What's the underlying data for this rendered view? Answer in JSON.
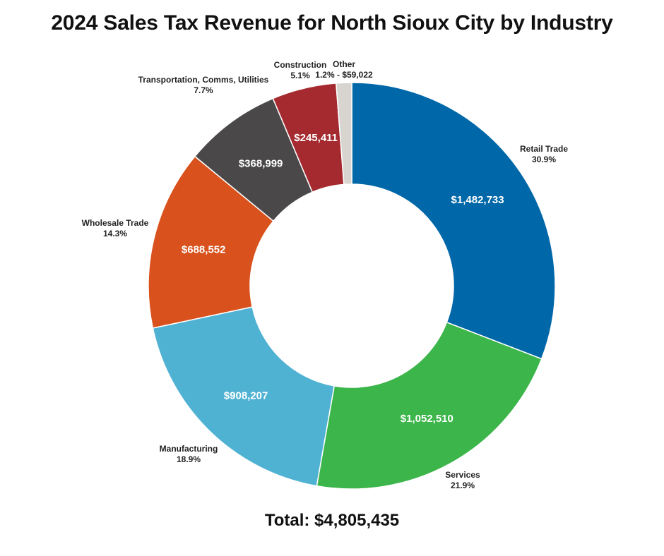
{
  "chart_data": {
    "type": "pie",
    "variant": "donut",
    "title": "2024 Sales Tax Revenue for North Sioux City by Industry",
    "total_label": "Total: $4,805,435",
    "slices": [
      {
        "label": "Retail Trade",
        "percent_label": "30.9%",
        "value": 1482733,
        "value_label": "$1,482,733",
        "color": "#0067a8"
      },
      {
        "label": "Services",
        "percent_label": "21.9%",
        "value": 1052510,
        "value_label": "$1,052,510",
        "color": "#3cb54a"
      },
      {
        "label": "Manufacturing",
        "percent_label": "18.9%",
        "value": 908207,
        "value_label": "$908,207",
        "color": "#50b2d3"
      },
      {
        "label": "Wholesale Trade",
        "percent_label": "14.3%",
        "value": 688552,
        "value_label": "$688,552",
        "color": "#d9521d"
      },
      {
        "label": "Transportation, Comms, Utilities",
        "percent_label": "7.7%",
        "value": 368999,
        "value_label": "$368,999",
        "color": "#4a4849"
      },
      {
        "label": "Construction",
        "percent_label": "5.1%",
        "value": 245411,
        "value_label": "$245,411",
        "color": "#a52a30"
      },
      {
        "label": "Other",
        "percent_label": "1.2% - $59,022",
        "value": 59022,
        "value_label": "",
        "color": "#d8d5d0"
      }
    ]
  }
}
